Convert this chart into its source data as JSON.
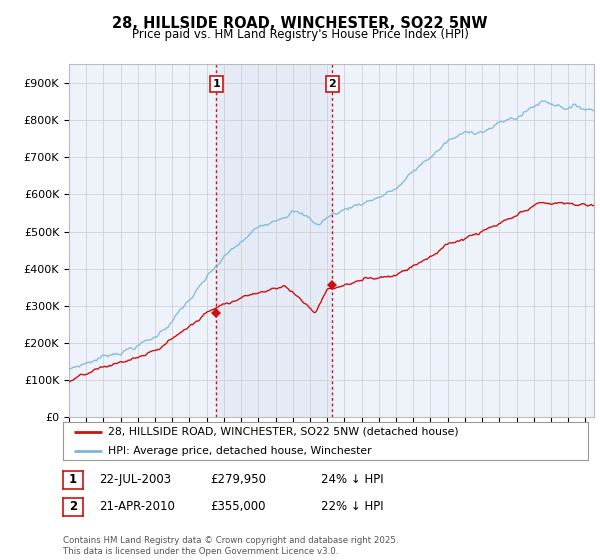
{
  "title_line1": "28, HILLSIDE ROAD, WINCHESTER, SO22 5NW",
  "title_line2": "Price paid vs. HM Land Registry's House Price Index (HPI)",
  "ylim": [
    0,
    950000
  ],
  "yticks": [
    0,
    100000,
    200000,
    300000,
    400000,
    500000,
    600000,
    700000,
    800000,
    900000
  ],
  "ytick_labels": [
    "£0",
    "£100K",
    "£200K",
    "£300K",
    "£400K",
    "£500K",
    "£600K",
    "£700K",
    "£800K",
    "£900K"
  ],
  "hpi_color": "#7db8d8",
  "property_color": "#cc1111",
  "vline_color": "#cc1111",
  "plot_bg_color": "#eef2fa",
  "grid_color": "#cccccc",
  "purchase1_year": 2003.55,
  "purchase1_price": 279950,
  "purchase2_year": 2010.3,
  "purchase2_price": 355000,
  "legend_line1": "28, HILLSIDE ROAD, WINCHESTER, SO22 5NW (detached house)",
  "legend_line2": "HPI: Average price, detached house, Winchester",
  "table_row1": [
    "1",
    "22-JUL-2003",
    "£279,950",
    "24% ↓ HPI"
  ],
  "table_row2": [
    "2",
    "21-APR-2010",
    "£355,000",
    "22% ↓ HPI"
  ],
  "footnote": "Contains HM Land Registry data © Crown copyright and database right 2025.\nThis data is licensed under the Open Government Licence v3.0.",
  "xmin": 1995,
  "xmax": 2025.5
}
